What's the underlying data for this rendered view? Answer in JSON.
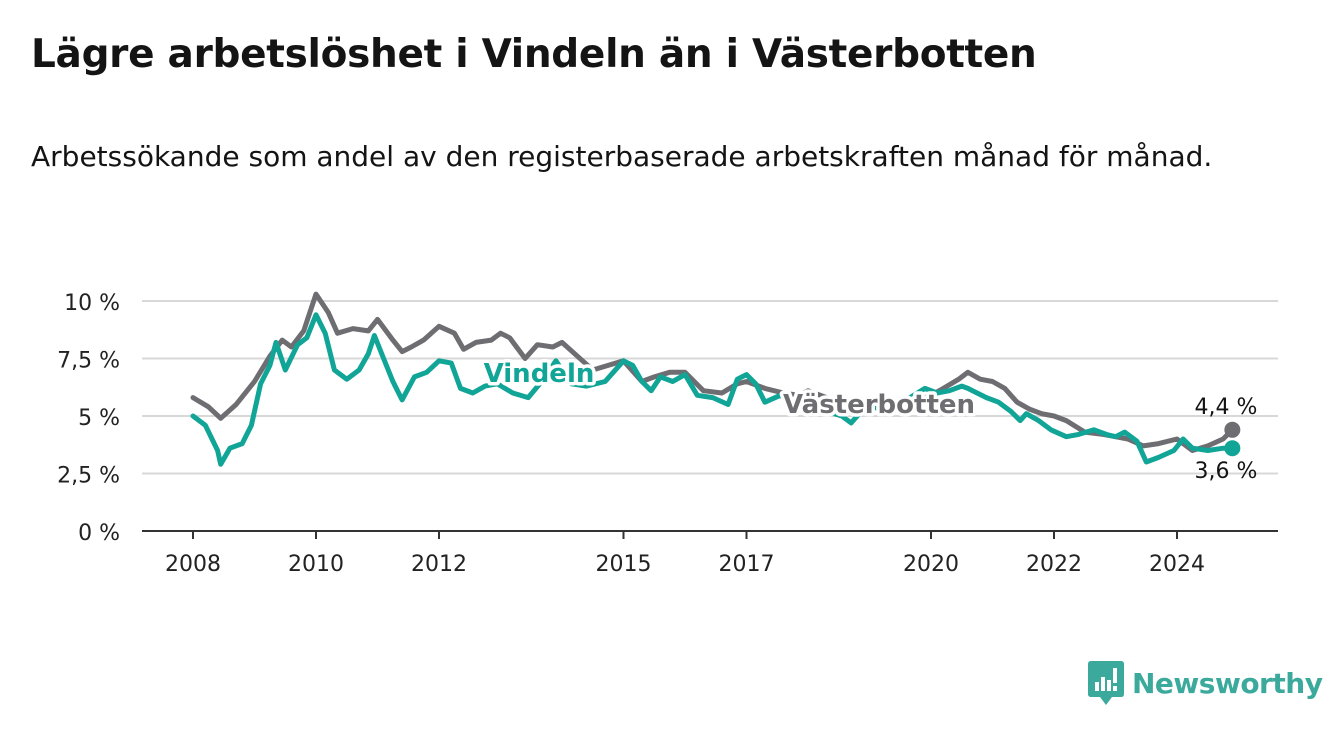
{
  "title": "Lägre arbetslöshet i Vindeln än i Västerbotten",
  "subtitle": "Arbetssökande som andel av den registerbaserade arbetskraften månad för månad.",
  "brand": {
    "name": "Newsworthy",
    "color": "#3ba99c"
  },
  "colors": {
    "vindeln": "#10a596",
    "vasterbotten": "#6e6d72",
    "grid": "#d8d8d8",
    "axis": "#333333"
  },
  "chart_data": {
    "type": "line",
    "title": "Lägre arbetslöshet i Vindeln än i Västerbotten",
    "subtitle": "Arbetssökande som andel av den registerbaserade arbetskraften månad för månad.",
    "xlabel": "",
    "ylabel": "",
    "xlim": [
      2007.75,
      2025.75
    ],
    "ylim": [
      0,
      10
    ],
    "y_ticks": [
      0,
      2.5,
      5,
      7.5,
      10
    ],
    "y_tick_labels": [
      "0 %",
      "2,5 %",
      "5 %",
      "7,5 %",
      "10 %"
    ],
    "x_ticks": [
      2008,
      2010,
      2012,
      2015,
      2017,
      2020,
      2022,
      2024
    ],
    "x_tick_labels": [
      "2008",
      "2010",
      "2012",
      "2015",
      "2017",
      "2020",
      "2022",
      "2024"
    ],
    "grid": true,
    "legend": "inline labels on lines",
    "end_labels": [
      "4,4 %",
      "3,6 %"
    ],
    "series": [
      {
        "name": "Västerbotten",
        "color": "#6e6d72",
        "points": [
          [
            2008.0,
            5.8
          ],
          [
            2008.25,
            5.4
          ],
          [
            2008.45,
            4.9
          ],
          [
            2008.7,
            5.5
          ],
          [
            2009.0,
            6.5
          ],
          [
            2009.25,
            7.6
          ],
          [
            2009.45,
            8.3
          ],
          [
            2009.6,
            8.0
          ],
          [
            2009.8,
            8.7
          ],
          [
            2010.0,
            10.3
          ],
          [
            2010.2,
            9.5
          ],
          [
            2010.35,
            8.6
          ],
          [
            2010.6,
            8.8
          ],
          [
            2010.85,
            8.7
          ],
          [
            2011.0,
            9.2
          ],
          [
            2011.25,
            8.3
          ],
          [
            2011.4,
            7.8
          ],
          [
            2011.55,
            8.0
          ],
          [
            2011.75,
            8.3
          ],
          [
            2012.0,
            8.9
          ],
          [
            2012.25,
            8.6
          ],
          [
            2012.4,
            7.9
          ],
          [
            2012.6,
            8.2
          ],
          [
            2012.85,
            8.3
          ],
          [
            2013.0,
            8.6
          ],
          [
            2013.15,
            8.4
          ],
          [
            2013.4,
            7.5
          ],
          [
            2013.6,
            8.1
          ],
          [
            2013.85,
            8.0
          ],
          [
            2014.0,
            8.2
          ],
          [
            2014.25,
            7.6
          ],
          [
            2014.5,
            7.0
          ],
          [
            2014.75,
            7.2
          ],
          [
            2015.0,
            7.4
          ],
          [
            2015.3,
            6.5
          ],
          [
            2015.5,
            6.7
          ],
          [
            2015.75,
            6.9
          ],
          [
            2016.0,
            6.9
          ],
          [
            2016.3,
            6.1
          ],
          [
            2016.6,
            6.0
          ],
          [
            2016.85,
            6.4
          ],
          [
            2017.0,
            6.5
          ],
          [
            2017.3,
            6.2
          ],
          [
            2017.6,
            6.0
          ],
          [
            2017.85,
            5.9
          ],
          [
            2018.0,
            6.1
          ],
          [
            2018.4,
            5.7
          ],
          [
            2018.7,
            5.2
          ],
          [
            2018.9,
            5.5
          ],
          [
            2019.0,
            5.6
          ],
          [
            2019.4,
            5.4
          ],
          [
            2019.7,
            5.6
          ],
          [
            2019.9,
            5.8
          ],
          [
            2020.0,
            5.9
          ],
          [
            2020.2,
            6.2
          ],
          [
            2020.45,
            6.6
          ],
          [
            2020.6,
            6.9
          ],
          [
            2020.8,
            6.6
          ],
          [
            2021.0,
            6.5
          ],
          [
            2021.2,
            6.2
          ],
          [
            2021.4,
            5.6
          ],
          [
            2021.6,
            5.3
          ],
          [
            2021.8,
            5.1
          ],
          [
            2022.0,
            5.0
          ],
          [
            2022.2,
            4.8
          ],
          [
            2022.5,
            4.3
          ],
          [
            2022.8,
            4.2
          ],
          [
            2023.0,
            4.1
          ],
          [
            2023.2,
            4.0
          ],
          [
            2023.45,
            3.7
          ],
          [
            2023.7,
            3.8
          ],
          [
            2024.0,
            4.0
          ],
          [
            2024.25,
            3.5
          ],
          [
            2024.5,
            3.7
          ],
          [
            2024.75,
            4.0
          ],
          [
            2024.9,
            4.4
          ]
        ]
      },
      {
        "name": "Vindeln",
        "color": "#10a596",
        "points": [
          [
            2008.0,
            5.0
          ],
          [
            2008.2,
            4.6
          ],
          [
            2008.4,
            3.5
          ],
          [
            2008.45,
            2.9
          ],
          [
            2008.6,
            3.6
          ],
          [
            2008.8,
            3.8
          ],
          [
            2008.95,
            4.6
          ],
          [
            2009.1,
            6.4
          ],
          [
            2009.25,
            7.2
          ],
          [
            2009.35,
            8.2
          ],
          [
            2009.5,
            7.0
          ],
          [
            2009.7,
            8.1
          ],
          [
            2009.85,
            8.4
          ],
          [
            2010.0,
            9.4
          ],
          [
            2010.15,
            8.6
          ],
          [
            2010.3,
            7.0
          ],
          [
            2010.5,
            6.6
          ],
          [
            2010.7,
            7.0
          ],
          [
            2010.85,
            7.7
          ],
          [
            2010.95,
            8.5
          ],
          [
            2011.1,
            7.5
          ],
          [
            2011.25,
            6.5
          ],
          [
            2011.4,
            5.7
          ],
          [
            2011.6,
            6.7
          ],
          [
            2011.8,
            6.9
          ],
          [
            2012.0,
            7.4
          ],
          [
            2012.2,
            7.3
          ],
          [
            2012.35,
            6.2
          ],
          [
            2012.55,
            6.0
          ],
          [
            2012.75,
            6.3
          ],
          [
            2012.95,
            6.4
          ],
          [
            2013.2,
            6.0
          ],
          [
            2013.45,
            5.8
          ],
          [
            2013.7,
            6.6
          ],
          [
            2013.9,
            7.4
          ],
          [
            2014.15,
            6.4
          ],
          [
            2014.4,
            6.3
          ],
          [
            2014.7,
            6.5
          ],
          [
            2014.9,
            7.1
          ],
          [
            2015.0,
            7.4
          ],
          [
            2015.15,
            7.2
          ],
          [
            2015.3,
            6.5
          ],
          [
            2015.45,
            6.1
          ],
          [
            2015.6,
            6.7
          ],
          [
            2015.8,
            6.5
          ],
          [
            2016.0,
            6.8
          ],
          [
            2016.2,
            5.9
          ],
          [
            2016.45,
            5.8
          ],
          [
            2016.7,
            5.5
          ],
          [
            2016.85,
            6.6
          ],
          [
            2017.0,
            6.8
          ],
          [
            2017.15,
            6.4
          ],
          [
            2017.3,
            5.6
          ],
          [
            2017.55,
            5.9
          ],
          [
            2017.8,
            5.5
          ],
          [
            2018.0,
            5.4
          ],
          [
            2018.3,
            5.2
          ],
          [
            2018.55,
            5.0
          ],
          [
            2018.7,
            4.7
          ],
          [
            2018.9,
            5.3
          ],
          [
            2019.0,
            5.5
          ],
          [
            2019.3,
            5.1
          ],
          [
            2019.6,
            5.7
          ],
          [
            2019.9,
            6.2
          ],
          [
            2020.1,
            6.0
          ],
          [
            2020.3,
            6.1
          ],
          [
            2020.5,
            6.3
          ],
          [
            2020.6,
            6.2
          ],
          [
            2020.75,
            6.0
          ],
          [
            2020.9,
            5.8
          ],
          [
            2021.1,
            5.6
          ],
          [
            2021.3,
            5.2
          ],
          [
            2021.45,
            4.8
          ],
          [
            2021.55,
            5.1
          ],
          [
            2021.75,
            4.8
          ],
          [
            2021.95,
            4.4
          ],
          [
            2022.2,
            4.1
          ],
          [
            2022.4,
            4.2
          ],
          [
            2022.65,
            4.4
          ],
          [
            2022.85,
            4.2
          ],
          [
            2023.0,
            4.1
          ],
          [
            2023.15,
            4.3
          ],
          [
            2023.35,
            3.9
          ],
          [
            2023.5,
            3.0
          ],
          [
            2023.7,
            3.2
          ],
          [
            2023.95,
            3.5
          ],
          [
            2024.1,
            4.0
          ],
          [
            2024.25,
            3.6
          ],
          [
            2024.5,
            3.5
          ],
          [
            2024.75,
            3.6
          ],
          [
            2024.9,
            3.6
          ]
        ]
      }
    ]
  }
}
